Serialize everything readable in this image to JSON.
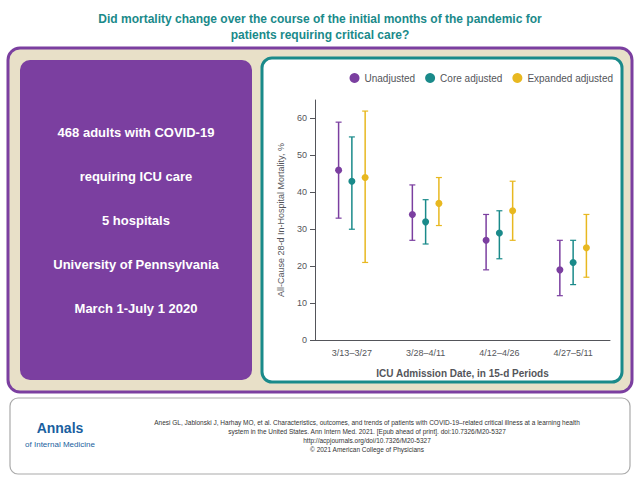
{
  "chart_data": {
    "type": "scatter",
    "title": "Did mortality change over the course of the initial months of the pandemic for\npatients requiring critical care?",
    "annotations": [
      "468 adults with COVID-19",
      "requiring ICU care",
      "5 hospitals",
      "University of Pennsylvania",
      "March 1-July 1 2020",
      "Annals\nof Internal Medicine",
      "Anesi GL, Jablonski J, Harhay MO, et al. Characteristics, outcomes, and trends of patients with COVID-19–related critical illness at a learning health\nsystem in the United States. Ann Intern Med. 2021. [Epub ahead of print]. doi:10.7326/M20-5327\nhttp://acpjournals.org/doi/10.7326/M20-5327\n© 2021 American College of Physicians"
    ],
    "xlabel": "ICU Admission Date, in 15-d Periods",
    "ylabel": "All-Cause 28-d In-Hospital Mortality, %",
    "categories": [
      "3/13–3/27",
      "3/28–4/11",
      "4/12–4/26",
      "4/27–5/11"
    ],
    "series": [
      {
        "name": "Unadjusted",
        "color": "#7b3fa0",
        "values": [
          46,
          34,
          27,
          19
        ],
        "lower": [
          33,
          27,
          19,
          12
        ],
        "upper": [
          59,
          42,
          34,
          27
        ]
      },
      {
        "name": "Core adjusted",
        "color": "#1a8a8a",
        "values": [
          43,
          32,
          29,
          21
        ],
        "lower": [
          30,
          26,
          22,
          15
        ],
        "upper": [
          55,
          38,
          35,
          27
        ]
      },
      {
        "name": "Expanded adjusted",
        "color": "#e8b820",
        "values": [
          44,
          37,
          35,
          25
        ],
        "lower": [
          21,
          31,
          27,
          17
        ],
        "upper": [
          62,
          44,
          43,
          34
        ]
      }
    ],
    "marker": "circle",
    "ylim": [
      0,
      65
    ],
    "yticks": [
      0,
      10,
      20,
      30,
      40,
      50,
      60
    ],
    "grid": false,
    "legend": "upper right"
  }
}
